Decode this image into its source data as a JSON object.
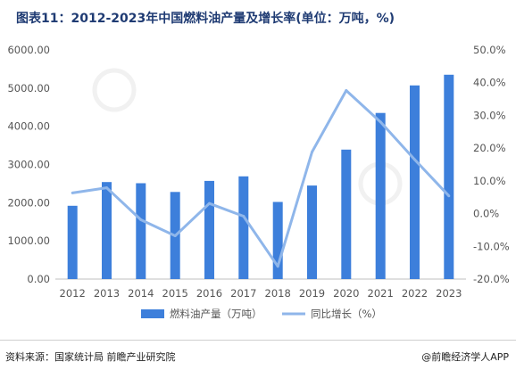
{
  "title": "图表11：2012-2023年中国燃料油产量及增长率(单位：万吨，%)",
  "source": "资料来源：国家统计局 前瞻产业研究院",
  "credit": "@前瞻经济学人APP",
  "colors": {
    "bar": "#3d7fdb",
    "line": "#8fb6ea",
    "axis": "#9a9a9a",
    "text": "#555555"
  },
  "chart_data": {
    "type": "bar",
    "categories": [
      "2012",
      "2013",
      "2014",
      "2015",
      "2016",
      "2017",
      "2018",
      "2019",
      "2020",
      "2021",
      "2022",
      "2023"
    ],
    "series": [
      {
        "name": "燃料油产量（万吨）",
        "type": "bar",
        "axis": "left",
        "values": [
          1920,
          2540,
          2510,
          2280,
          2570,
          2690,
          2020,
          2450,
          3390,
          4350,
          5070,
          5350
        ]
      },
      {
        "name": "同比增长（%）",
        "type": "line",
        "axis": "right",
        "values": [
          6.3,
          7.9,
          -1.9,
          -6.8,
          3.1,
          -0.8,
          -16.1,
          18.8,
          37.6,
          28.0,
          16.5,
          5.4
        ]
      }
    ],
    "yleft": {
      "min": 0,
      "max": 6000,
      "step": 1000,
      "ticks": [
        "0.00",
        "1000.00",
        "2000.00",
        "3000.00",
        "4000.00",
        "5000.00",
        "6000.00"
      ]
    },
    "yright": {
      "min": -20,
      "max": 50,
      "step": 10,
      "ticks": [
        "-20.0%",
        "-10.0%",
        "0.0%",
        "10.0%",
        "20.0%",
        "30.0%",
        "40.0%",
        "50.0%"
      ]
    },
    "grid": false,
    "legend": "bottom-center",
    "legend_labels": [
      "燃料油产量（万吨）",
      "同比增长（%）"
    ]
  }
}
